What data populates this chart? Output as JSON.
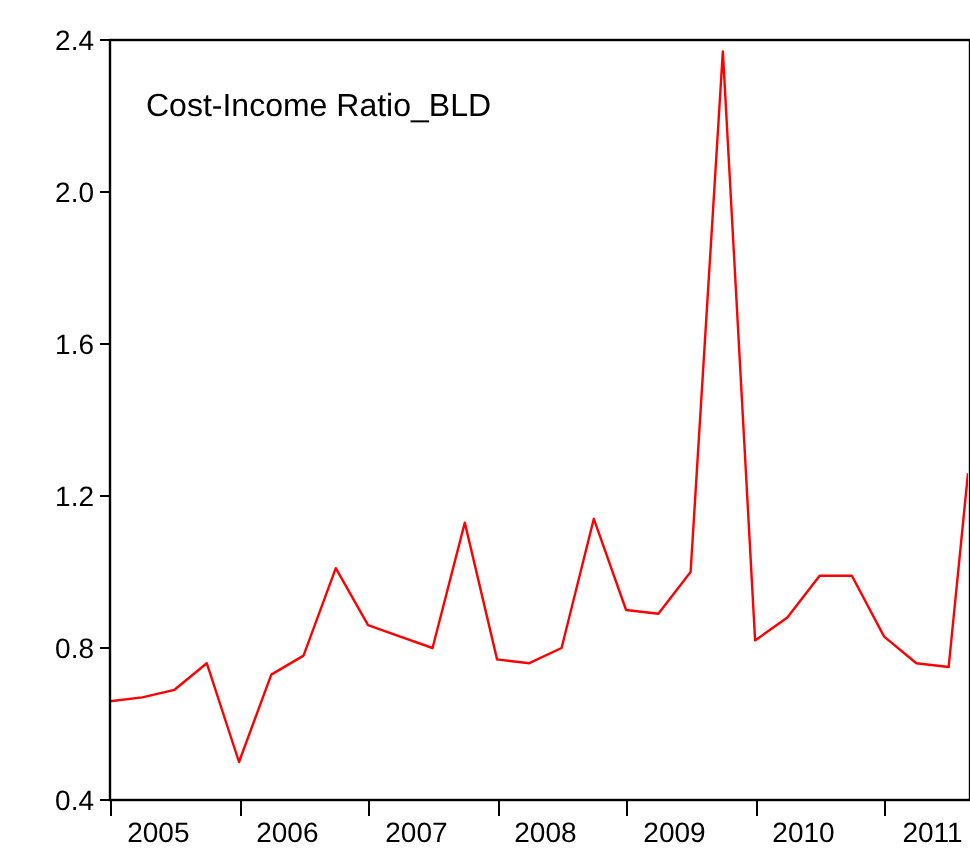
{
  "chart_data": {
    "type": "line",
    "title": "Cost-Income Ratio_BLD",
    "x": [
      2005,
      2005.25,
      2005.5,
      2005.75,
      2006,
      2006.25,
      2006.5,
      2006.75,
      2007,
      2007.25,
      2007.5,
      2007.75,
      2008,
      2008.25,
      2008.5,
      2008.75,
      2009,
      2009.25,
      2009.5,
      2009.75,
      2010,
      2010.25,
      2010.5,
      2010.75,
      2011,
      2011.25,
      2011.5,
      2011.65
    ],
    "series": [
      {
        "color": "#ff0000",
        "values": [
          0.66,
          0.67,
          0.69,
          0.76,
          0.5,
          0.73,
          0.78,
          1.01,
          0.86,
          0.83,
          0.8,
          1.13,
          0.77,
          0.76,
          0.8,
          1.14,
          0.9,
          0.89,
          1.0,
          2.37,
          0.82,
          0.88,
          0.99,
          0.99,
          0.83,
          0.76,
          0.75,
          1.26
        ]
      }
    ],
    "xlim": [
      2005,
      2011.65
    ],
    "xticks": [
      {
        "value": 2005,
        "label": null
      },
      {
        "value": 2005.375,
        "label": "2005"
      },
      {
        "value": 2006,
        "label": null
      },
      {
        "value": 2006.375,
        "label": "2006"
      },
      {
        "value": 2007,
        "label": null
      },
      {
        "value": 2007.375,
        "label": "2007"
      },
      {
        "value": 2008,
        "label": null
      },
      {
        "value": 2008.375,
        "label": "2008"
      },
      {
        "value": 2009,
        "label": null
      },
      {
        "value": 2009.375,
        "label": "2009"
      },
      {
        "value": 2010,
        "label": null
      },
      {
        "value": 2010.375,
        "label": "2010"
      },
      {
        "value": 2011,
        "label": null
      },
      {
        "value": 2011.375,
        "label": "2011"
      }
    ],
    "ylim": [
      0.4,
      2.4
    ],
    "yticks": [
      {
        "value": 0.4,
        "label": "0.4"
      },
      {
        "value": 0.8,
        "label": "0.8"
      },
      {
        "value": 1.2,
        "label": "1.2"
      },
      {
        "value": 1.6,
        "label": "1.6"
      },
      {
        "value": 2.0,
        "label": "2.0"
      },
      {
        "value": 2.4,
        "label": "2.4"
      }
    ],
    "grid": false,
    "marker": "none",
    "line_style": "solid"
  }
}
